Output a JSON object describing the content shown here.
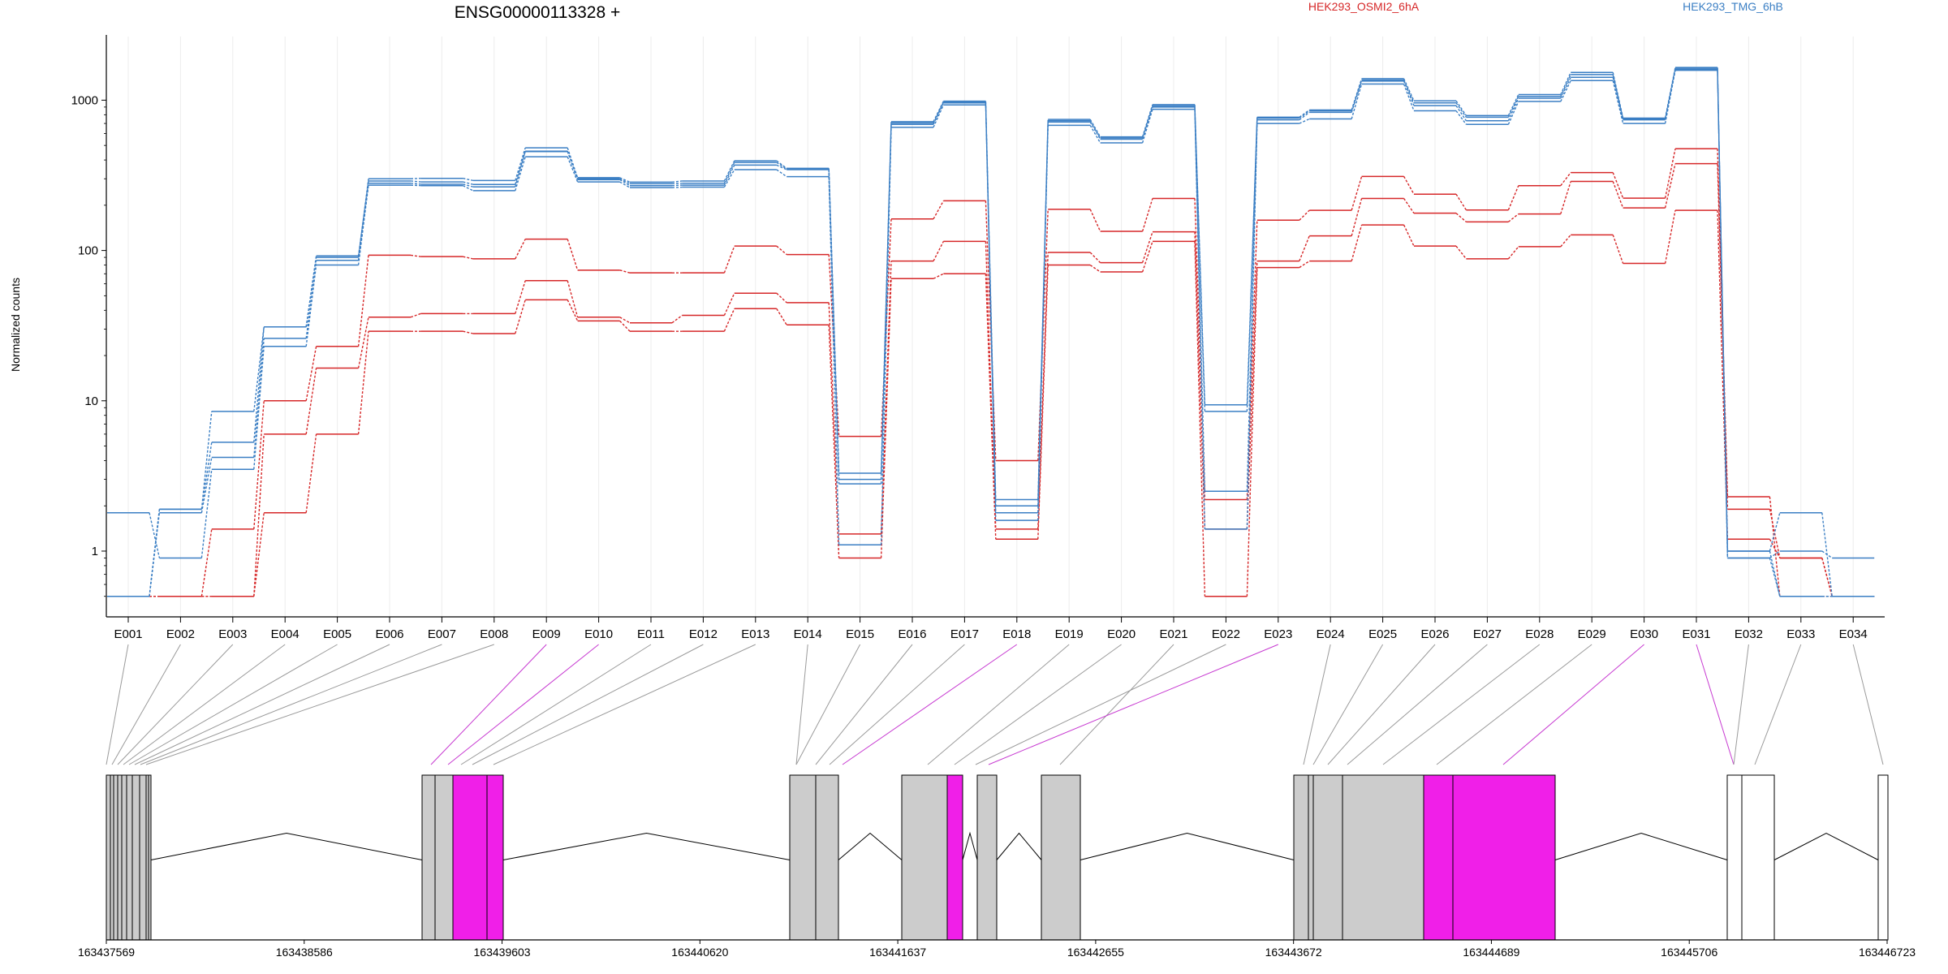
{
  "chart_data": {
    "type": "line",
    "title": "ENSG00000113328 +",
    "ylabel": "Normalized counts",
    "xlabel": "",
    "y_scale": "log",
    "ylim": [
      0.48,
      2200
    ],
    "y_ticks": [
      1,
      10,
      100,
      1000
    ],
    "y_tick_labels": [
      "1",
      "10",
      "100",
      "1000"
    ],
    "grid": "vertical lines at each exon bin",
    "legend": [
      {
        "label": "HEK293_OSMI2_6hA",
        "color": "#d62728",
        "placement": "top-center"
      },
      {
        "label": "HEK293_TMG_6hB",
        "color": "#3b7fc4",
        "placement": "top-right"
      }
    ],
    "categories": [
      "E001",
      "E002",
      "E003",
      "E004",
      "E005",
      "E006",
      "E007",
      "E008",
      "E009",
      "E010",
      "E011",
      "E012",
      "E013",
      "E014",
      "E015",
      "E016",
      "E017",
      "E018",
      "E019",
      "E020",
      "E021",
      "E022",
      "E023",
      "E024",
      "E025",
      "E026",
      "E027",
      "E028",
      "E029",
      "E030",
      "E031",
      "E032",
      "E033",
      "E034"
    ],
    "series": [
      {
        "group": "HEK293_OSMI2_6hA",
        "color": "#d62728",
        "values": [
          0.5,
          0.5,
          0.5,
          1.8,
          6,
          29,
          29,
          28,
          47,
          34,
          29,
          29,
          41,
          32,
          0.9,
          65,
          70,
          1.2,
          80,
          72,
          115,
          0.5,
          77,
          85,
          148,
          107,
          88,
          106,
          127,
          82,
          185,
          1.2,
          0.9,
          0.5
        ]
      },
      {
        "group": "HEK293_OSMI2_6hA",
        "color": "#d62728",
        "values": [
          0.5,
          0.5,
          0.5,
          6,
          16.5,
          36,
          38,
          38,
          63,
          36,
          33,
          37,
          52,
          45,
          1.3,
          85,
          115,
          1.4,
          97,
          83,
          133,
          1.4,
          85,
          125,
          222,
          177,
          155,
          175,
          288,
          192,
          378,
          1.9,
          0.9,
          0.5
        ]
      },
      {
        "group": "HEK293_OSMI2_6hA",
        "color": "#d62728",
        "values": [
          0.5,
          0.5,
          1.4,
          10,
          23,
          93,
          91,
          88,
          119,
          74,
          71,
          71,
          107,
          94,
          5.8,
          162,
          214,
          4.0,
          188,
          134,
          222,
          2.2,
          159,
          185,
          311,
          237,
          186,
          270,
          330,
          223,
          475,
          2.3,
          0.5,
          0.5
        ]
      },
      {
        "group": "HEK293_TMG_6hB",
        "color": "#3b7fc4",
        "values": [
          1.8,
          0.9,
          3.5,
          23,
          80,
          272,
          270,
          250,
          420,
          286,
          262,
          264,
          345,
          310,
          1.1,
          660,
          930,
          1.6,
          680,
          520,
          870,
          1.4,
          700,
          750,
          1280,
          850,
          690,
          980,
          1350,
          700,
          1580,
          0.9,
          0.5,
          0.5
        ]
      },
      {
        "group": "HEK293_TMG_6hB",
        "color": "#3b7fc4",
        "values": [
          0.5,
          1.8,
          4.2,
          26,
          86,
          280,
          276,
          265,
          458,
          296,
          270,
          272,
          370,
          345,
          2.8,
          690,
          960,
          1.8,
          715,
          550,
          900,
          2.5,
          740,
          830,
          1340,
          920,
          730,
          1030,
          1420,
          740,
          1600,
          1.0,
          1.8,
          0.5
        ]
      },
      {
        "group": "HEK293_TMG_6hB",
        "color": "#3b7fc4",
        "values": [
          0.5,
          1.9,
          5.3,
          31,
          90,
          300,
          302,
          292,
          482,
          305,
          285,
          290,
          395,
          352,
          3.3,
          720,
          985,
          2.2,
          745,
          570,
          935,
          8.5,
          770,
          860,
          1390,
          990,
          790,
          1090,
          1530,
          760,
          1650,
          0.9,
          1.0,
          0.9
        ]
      },
      {
        "group": "HEK293_TMG_6hB",
        "color": "#3b7fc4",
        "values": [
          0.5,
          1.9,
          8.5,
          31,
          92,
          290,
          286,
          275,
          455,
          300,
          278,
          280,
          385,
          348,
          3.0,
          705,
          970,
          2.0,
          730,
          560,
          915,
          9.4,
          760,
          850,
          1360,
          960,
          770,
          1060,
          1480,
          750,
          1630,
          1.0,
          0.5,
          0.5
        ]
      }
    ]
  },
  "gene_model": {
    "genomic_axis_ticks": [
      "163437569",
      "163438586",
      "163439603",
      "163440620",
      "163441637",
      "163442655",
      "163443672",
      "163444689",
      "163445706",
      "163446723"
    ],
    "highlight_color": "#f01fe8",
    "exon_fill": "#cccccc",
    "highlighted_bins": [
      "E009",
      "E010",
      "E018",
      "E023",
      "E030",
      "E031"
    ]
  }
}
